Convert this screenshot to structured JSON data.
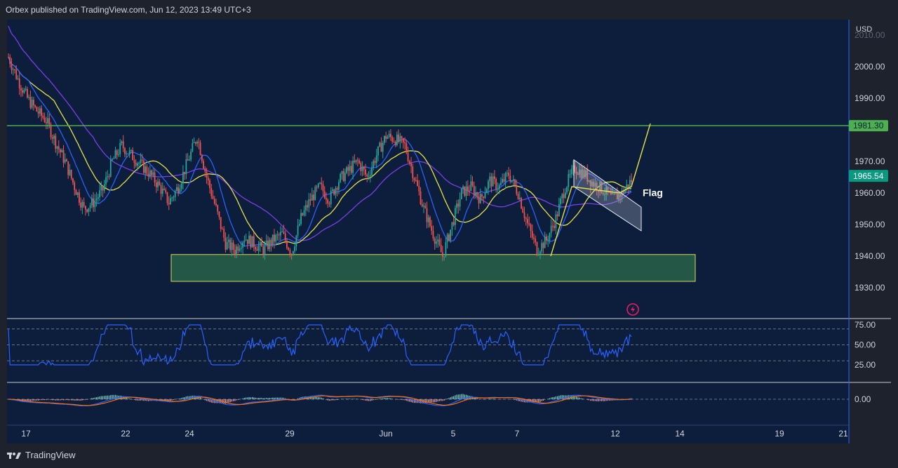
{
  "header": {
    "publisher": "Orbex published on TradingView.com, Jun 12, 2023 13:49 UTC+3"
  },
  "footer": {
    "brand": "TradingView"
  },
  "colors": {
    "background": "#1e222d",
    "pane": "#0d1e3c",
    "bull": "#26a69a",
    "bear": "#ef5350",
    "resistance": "#4caf50",
    "ma_fast": "#2962ff",
    "ma_mid": "#e6e04a",
    "ma_slow": "#7b3fe4",
    "rsi": "#2962ff",
    "macd": "#2962ff",
    "signal": "#ff6d00",
    "price_badge": "#089981"
  },
  "chart_data": {
    "type": "candlestick",
    "instrument_currency": "USD",
    "price_axis": {
      "ticks": [
        "2000.00",
        "1990.00",
        "1980.00",
        "1970.00",
        "1960.00",
        "1950.00",
        "1940.00",
        "1930.00"
      ],
      "range": [
        1924,
        2011
      ],
      "partial_top_label": "2010.00"
    },
    "time_axis": {
      "ticks": [
        "17",
        "22",
        "24",
        "29",
        "Jun",
        "5",
        "7",
        "12",
        "14",
        "19",
        "21"
      ]
    },
    "resistance": {
      "value": 1981.3,
      "label": "1981.30"
    },
    "last_price": {
      "value": 1965.54,
      "label": "1965.54"
    },
    "support_zone": {
      "low": 1932,
      "high": 1940.5
    },
    "flag": {
      "label": "Flag",
      "upper": [
        [
          1970.5,
          "Jun 9"
        ],
        [
          1960,
          "Jun 12"
        ]
      ],
      "lower": [
        [
          1962,
          "Jun 9"
        ],
        [
          1951.5,
          "Jun 12"
        ]
      ]
    },
    "projection": {
      "pole": [
        1940,
        1962
      ],
      "target": 1982
    },
    "price_path": [
      [
        0,
        2003
      ],
      [
        6,
        1996
      ],
      [
        12,
        1990
      ],
      [
        18,
        1986
      ],
      [
        24,
        1983
      ],
      [
        30,
        1976
      ],
      [
        36,
        1970
      ],
      [
        42,
        1962
      ],
      [
        48,
        1955
      ],
      [
        54,
        1957
      ],
      [
        60,
        1961
      ],
      [
        66,
        1970
      ],
      [
        72,
        1975
      ],
      [
        78,
        1972
      ],
      [
        84,
        1969
      ],
      [
        90,
        1966
      ],
      [
        96,
        1962
      ],
      [
        102,
        1957
      ],
      [
        108,
        1962
      ],
      [
        114,
        1970
      ],
      [
        120,
        1978
      ],
      [
        126,
        1965
      ],
      [
        132,
        1955
      ],
      [
        138,
        1944
      ],
      [
        144,
        1942
      ],
      [
        150,
        1946
      ],
      [
        156,
        1944
      ],
      [
        162,
        1942
      ],
      [
        168,
        1945
      ],
      [
        174,
        1947
      ],
      [
        180,
        1941
      ],
      [
        186,
        1952
      ],
      [
        192,
        1958
      ],
      [
        198,
        1962
      ],
      [
        204,
        1958
      ],
      [
        210,
        1964
      ],
      [
        216,
        1967
      ],
      [
        222,
        1970
      ],
      [
        228,
        1965
      ],
      [
        234,
        1972
      ],
      [
        240,
        1978
      ],
      [
        246,
        1977
      ],
      [
        252,
        1975
      ],
      [
        258,
        1965
      ],
      [
        264,
        1955
      ],
      [
        270,
        1947
      ],
      [
        276,
        1940
      ],
      [
        282,
        1950
      ],
      [
        288,
        1960
      ],
      [
        294,
        1962
      ],
      [
        300,
        1958
      ],
      [
        306,
        1964
      ],
      [
        312,
        1962
      ],
      [
        318,
        1966
      ],
      [
        324,
        1960
      ],
      [
        330,
        1950
      ],
      [
        336,
        1942
      ],
      [
        342,
        1945
      ],
      [
        348,
        1952
      ],
      [
        354,
        1962
      ],
      [
        360,
        1968
      ],
      [
        366,
        1966
      ],
      [
        372,
        1963
      ],
      [
        378,
        1961
      ],
      [
        384,
        1958
      ],
      [
        390,
        1960
      ],
      [
        396,
        1964
      ]
    ],
    "indicators": {
      "rsi": {
        "levels": [
          "75.00",
          "50.00",
          "25.00"
        ],
        "dashed": [
          70,
          50,
          30
        ]
      },
      "macd": {
        "zero_label": "0.00"
      }
    }
  }
}
